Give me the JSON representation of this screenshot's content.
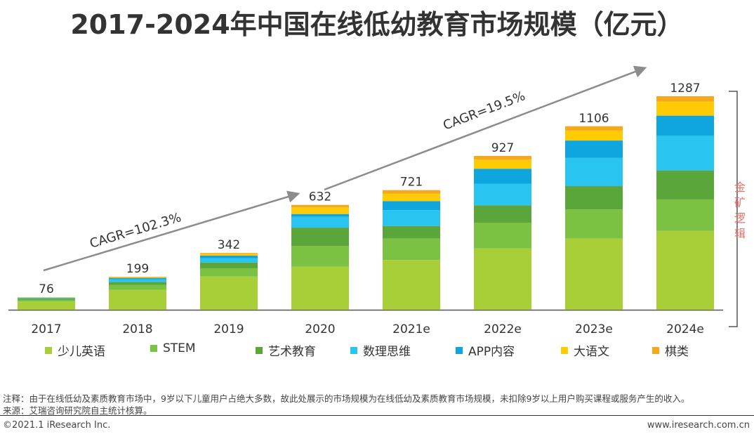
{
  "title": "2017-2024年中国在线低幼教育市场规模（亿元）",
  "notes": {
    "note_text": "注释：由于在线低幼及素质教育市场中，9岁以下儿童用户占绝大多数，故此处展示的市场规模为在线低幼及素质教育市场规模，未扣除9岁以上用户购买课程或服务产生的收入。",
    "source_text": "来源：艾瑞咨询研究院自主统计核算。"
  },
  "footer": {
    "copyright": "©2021.1 iResearch Inc.",
    "website": "www.iresearch.com.cn"
  },
  "chart_data": {
    "type": "bar",
    "stacked": true,
    "categories": [
      "2017",
      "2018",
      "2019",
      "2020",
      "2021e",
      "2022e",
      "2023e",
      "2024e"
    ],
    "totals": [
      76,
      199,
      342,
      632,
      721,
      927,
      1106,
      1287
    ],
    "series": [
      {
        "name": "少儿英语",
        "color": "#a9cf38",
        "values": [
          50,
          120,
          200,
          260,
          300,
          370,
          430,
          475
        ]
      },
      {
        "name": "STEM",
        "color": "#7cc242",
        "values": [
          10,
          30,
          50,
          125,
          130,
          155,
          175,
          190
        ]
      },
      {
        "name": "艺术教育",
        "color": "#5aa63b",
        "values": [
          8,
          18,
          35,
          110,
          75,
          105,
          140,
          175
        ]
      },
      {
        "name": "数理思维",
        "color": "#29c4ef",
        "values": [
          3,
          16,
          25,
          65,
          95,
          130,
          170,
          210
        ]
      },
      {
        "name": "APP内容",
        "color": "#0fa6e0",
        "values": [
          2,
          8,
          16,
          17,
          55,
          90,
          105,
          120
        ]
      },
      {
        "name": "大语文",
        "color": "#ffcb05",
        "values": [
          2,
          5,
          10,
          40,
          44,
          55,
          60,
          85
        ]
      },
      {
        "name": "棋类",
        "color": "#f6a81c",
        "values": [
          1,
          2,
          6,
          15,
          22,
          22,
          26,
          32
        ]
      }
    ],
    "annotations": {
      "cagr_1": "CAGR=102.3%",
      "cagr_2": "CAGR=19.5%",
      "bracket_label": "金矿逻辑"
    },
    "ylim": [
      0,
      1350
    ],
    "grid": false,
    "legend_position": "bottom"
  }
}
